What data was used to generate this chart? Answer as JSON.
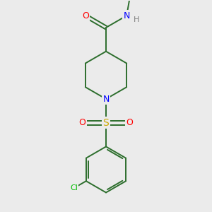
{
  "background_color": "#ebebeb",
  "bond_color": "#2d6e2d",
  "atom_colors": {
    "O": "#ff0000",
    "N": "#0000ff",
    "S": "#ccaa00",
    "Cl": "#00bb00",
    "H": "#808080",
    "C": "#2d6e2d"
  },
  "figsize": [
    3.0,
    3.0
  ],
  "dpi": 100,
  "lw": 1.4
}
